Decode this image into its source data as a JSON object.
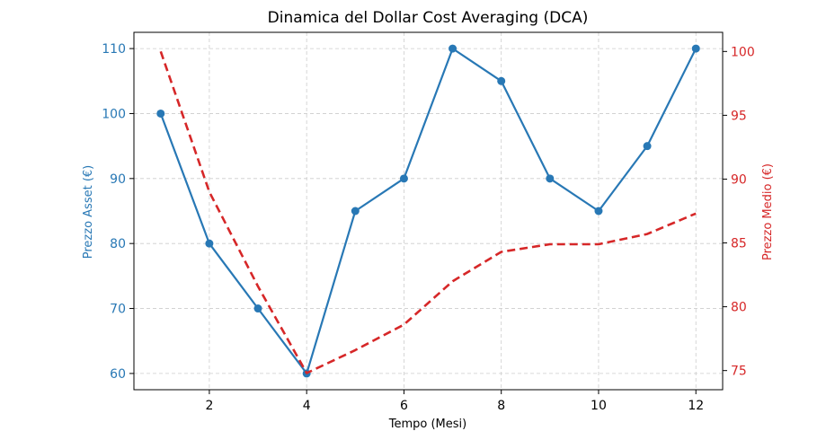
{
  "chart_data": {
    "type": "line",
    "title": "Dinamica del Dollar Cost Averaging (DCA)",
    "xlabel": "Tempo (Mesi)",
    "ylabel_left": "Prezzo Asset (€)",
    "ylabel_right": "Prezzo Medio (€)",
    "x": [
      1,
      2,
      3,
      4,
      5,
      6,
      7,
      8,
      9,
      10,
      11,
      12
    ],
    "xlim": [
      0.45,
      12.55
    ],
    "xticks": [
      2,
      4,
      6,
      8,
      10,
      12
    ],
    "ylim_left": [
      57.5,
      112.5
    ],
    "yticks_left": [
      60,
      70,
      80,
      90,
      100,
      110
    ],
    "ylim_right": [
      73.5,
      101.5
    ],
    "yticks_right": [
      75,
      80,
      85,
      90,
      95,
      100
    ],
    "grid": true,
    "series": [
      {
        "name": "Prezzo Asset",
        "axis": "left",
        "style": "solid-markers",
        "color": "#2878b5",
        "values": [
          100,
          80,
          70,
          60,
          85,
          90,
          110,
          105,
          90,
          85,
          95,
          110
        ]
      },
      {
        "name": "Prezzo Medio",
        "axis": "right",
        "style": "dashed",
        "color": "#d62728",
        "values": [
          100,
          89,
          81.6,
          74.8,
          76.6,
          78.6,
          82,
          84.3,
          84.9,
          84.9,
          85.7,
          87.3
        ]
      }
    ]
  }
}
